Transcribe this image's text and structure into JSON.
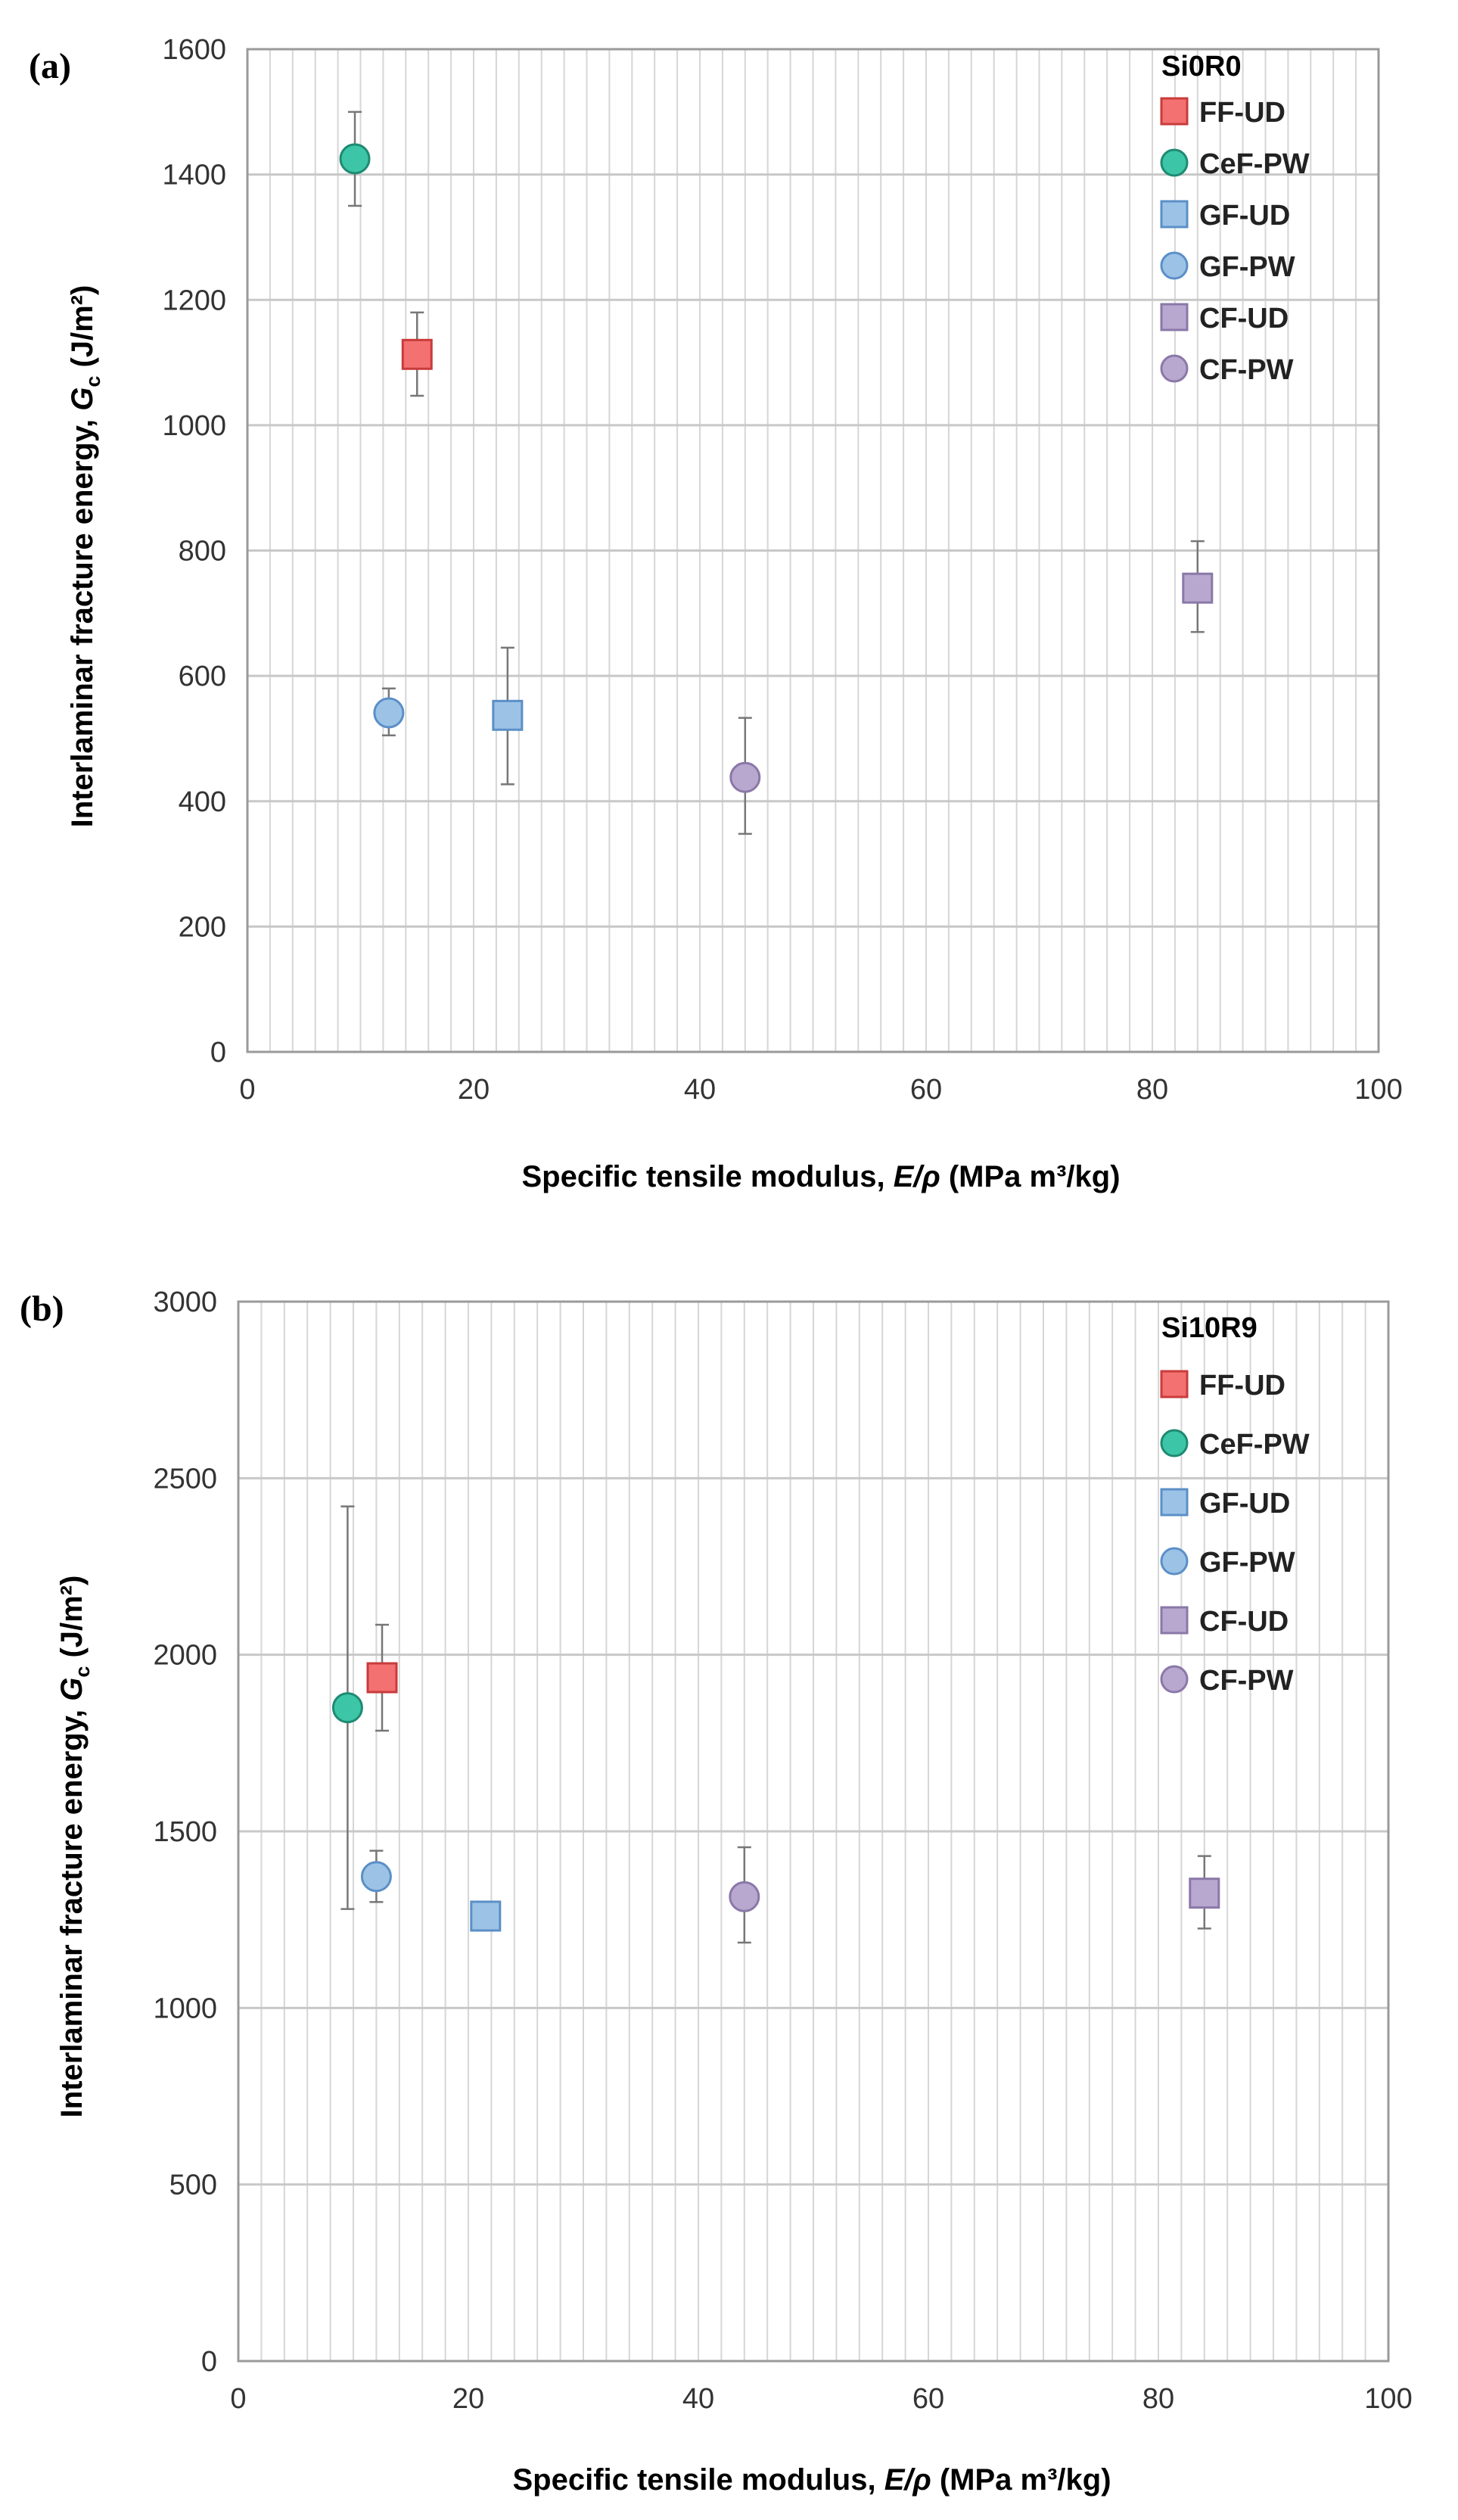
{
  "chart_data": [
    {
      "type": "scatter",
      "panel_label": "(a)",
      "legend_title": "Si0R0",
      "xlabel_prefix": "Specific tensile modulus, ",
      "xlabel_symbol": "E/ρ",
      "xlabel_suffix": " (MPa m³/kg)",
      "ylabel_prefix": "Interlaminar fracture energy, ",
      "ylabel_symbol": "G",
      "ylabel_subscript": "c",
      "ylabel_suffix": " (J/m²)",
      "xlim": [
        0,
        100
      ],
      "ylim": [
        0,
        1600
      ],
      "xticks": [
        "0",
        "20",
        "40",
        "60",
        "80",
        "100"
      ],
      "yticks": [
        "0",
        "200",
        "400",
        "600",
        "800",
        "1000",
        "1200",
        "1400",
        "1600"
      ],
      "grid": true,
      "legend_position": "top-right",
      "series": [
        {
          "name": "FF-UD",
          "marker": "square",
          "color": "#f47171",
          "edge": "#c93b3b",
          "x": 15.0,
          "y": 1113,
          "err_low": 1047,
          "err_high": 1180
        },
        {
          "name": "CeF-PW",
          "marker": "circle",
          "color": "#3cc6a7",
          "edge": "#1f8a72",
          "x": 9.5,
          "y": 1425,
          "err_low": 1350,
          "err_high": 1500
        },
        {
          "name": "GF-UD",
          "marker": "square",
          "color": "#9cc3e6",
          "edge": "#5b8fc7",
          "x": 23.0,
          "y": 537,
          "err_low": 427,
          "err_high": 645
        },
        {
          "name": "GF-PW",
          "marker": "circle",
          "color": "#9cc3e6",
          "edge": "#5b8fc7",
          "x": 12.5,
          "y": 541,
          "err_low": 505,
          "err_high": 580
        },
        {
          "name": "CF-UD",
          "marker": "square",
          "color": "#b8a8cf",
          "edge": "#8a78a8",
          "x": 84.0,
          "y": 740,
          "err_low": 670,
          "err_high": 815
        },
        {
          "name": "CF-PW",
          "marker": "circle",
          "color": "#b8a8cf",
          "edge": "#8a78a8",
          "x": 44.0,
          "y": 438,
          "err_low": 348,
          "err_high": 533
        }
      ]
    },
    {
      "type": "scatter",
      "panel_label": "(b)",
      "legend_title": "Si10R9",
      "xlabel_prefix": "Specific tensile modulus, ",
      "xlabel_symbol": "E/ρ",
      "xlabel_suffix": " (MPa m³/kg)",
      "ylabel_prefix": "Interlaminar fracture energy, ",
      "ylabel_symbol": "G",
      "ylabel_subscript": "c",
      "ylabel_suffix": " (J/m²)",
      "xlim": [
        0,
        100
      ],
      "ylim": [
        0,
        3000
      ],
      "xticks": [
        "0",
        "20",
        "40",
        "60",
        "80",
        "100"
      ],
      "yticks": [
        "0",
        "500",
        "1000",
        "1500",
        "2000",
        "2500",
        "3000"
      ],
      "grid": true,
      "legend_position": "top-right",
      "series": [
        {
          "name": "FF-UD",
          "marker": "square",
          "color": "#f47171",
          "edge": "#c93b3b",
          "x": 12.5,
          "y": 1935,
          "err_low": 1785,
          "err_high": 2085
        },
        {
          "name": "CeF-PW",
          "marker": "circle",
          "color": "#3cc6a7",
          "edge": "#1f8a72",
          "x": 9.5,
          "y": 1850,
          "err_low": 1280,
          "err_high": 2420
        },
        {
          "name": "GF-UD",
          "marker": "square",
          "color": "#9cc3e6",
          "edge": "#5b8fc7",
          "x": 21.5,
          "y": 1260,
          "err_low": 1225,
          "err_high": 1300
        },
        {
          "name": "GF-PW",
          "marker": "circle",
          "color": "#9cc3e6",
          "edge": "#5b8fc7",
          "x": 12.0,
          "y": 1372,
          "err_low": 1300,
          "err_high": 1445
        },
        {
          "name": "CF-UD",
          "marker": "square",
          "color": "#b8a8cf",
          "edge": "#8a78a8",
          "x": 84.0,
          "y": 1325,
          "err_low": 1225,
          "err_high": 1430
        },
        {
          "name": "CF-PW",
          "marker": "circle",
          "color": "#b8a8cf",
          "edge": "#8a78a8",
          "x": 44.0,
          "y": 1315,
          "err_low": 1185,
          "err_high": 1455
        }
      ]
    }
  ]
}
